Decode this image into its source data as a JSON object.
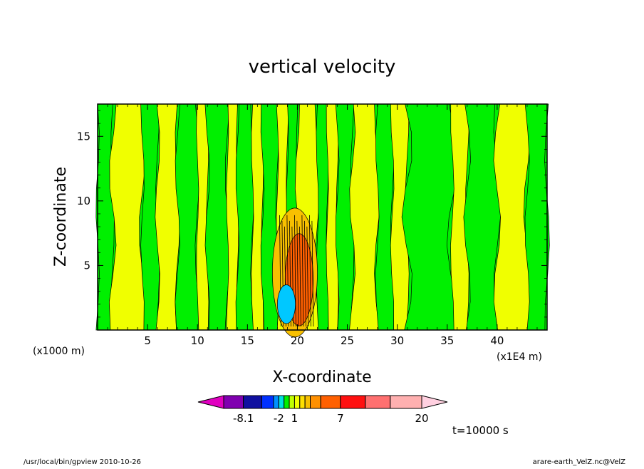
{
  "footer": {
    "left": "/usr/local/bin/gpview  2010-10-26",
    "right": "arare-earth_VelZ.nc@VelZ"
  },
  "colors": {
    "green": "#00f000",
    "yellow": "#f0ff00",
    "light_orange": "#f8c000",
    "orange": "#ff6000",
    "red": "#ff1010",
    "cyan": "#00c8ff",
    "blue": "#0030ff"
  },
  "chart_data": {
    "type": "heatmap",
    "title": "vertical velocity",
    "xlabel": "X-coordinate",
    "ylabel": "Z-coordinate",
    "x_scale_note": "(x1000 m)",
    "x_unit_note": "(x1E4 m)",
    "xlim": [
      0,
      45
    ],
    "ylim": [
      0,
      17.5
    ],
    "x_ticks": [
      "5",
      "10",
      "15",
      "20",
      "25",
      "30",
      "35",
      "40"
    ],
    "y_ticks": [
      "5",
      "10",
      "15"
    ],
    "time_label": "t=10000 s",
    "colorbar": {
      "tick_labels": [
        "-8.1",
        "-2",
        "1",
        "7",
        "20"
      ],
      "colors": [
        "#e000c0",
        "#8000b0",
        "#1010a0",
        "#0030ff",
        "#0090ff",
        "#00e0e0",
        "#00f000",
        "#c0ff00",
        "#f0ff00",
        "#ffe000",
        "#f8c000",
        "#ff9000",
        "#ff6000",
        "#ff1010",
        "#ff7070",
        "#ffb0b0",
        "#ffd0e0"
      ]
    },
    "columns": [
      {
        "x0": 0,
        "x1": 1.5,
        "c": "green"
      },
      {
        "x0": 1.5,
        "x1": 4.5,
        "c": "yellow"
      },
      {
        "x0": 4.5,
        "x1": 6,
        "c": "green"
      },
      {
        "x0": 6,
        "x1": 8,
        "c": "yellow"
      },
      {
        "x0": 8,
        "x1": 10,
        "c": "green"
      },
      {
        "x0": 10,
        "x1": 11,
        "c": "yellow"
      },
      {
        "x0": 11,
        "x1": 13,
        "c": "green"
      },
      {
        "x0": 13,
        "x1": 14,
        "c": "yellow"
      },
      {
        "x0": 14,
        "x1": 15.5,
        "c": "green"
      },
      {
        "x0": 15.5,
        "x1": 16.5,
        "c": "yellow"
      },
      {
        "x0": 16.5,
        "x1": 18,
        "c": "green"
      },
      {
        "x0": 18,
        "x1": 19,
        "c": "yellow"
      },
      {
        "x0": 19,
        "x1": 20,
        "c": "green"
      },
      {
        "x0": 20,
        "x1": 22,
        "c": "yellow"
      },
      {
        "x0": 22,
        "x1": 23,
        "c": "green"
      },
      {
        "x0": 23,
        "x1": 24,
        "c": "yellow"
      },
      {
        "x0": 24,
        "x1": 25.5,
        "c": "green"
      },
      {
        "x0": 25.5,
        "x1": 28,
        "c": "yellow"
      },
      {
        "x0": 28,
        "x1": 29.5,
        "c": "green"
      },
      {
        "x0": 29.5,
        "x1": 31,
        "c": "yellow"
      },
      {
        "x0": 31,
        "x1": 35.5,
        "c": "green"
      },
      {
        "x0": 35.5,
        "x1": 37,
        "c": "yellow"
      },
      {
        "x0": 37,
        "x1": 40,
        "c": "green"
      },
      {
        "x0": 40,
        "x1": 43,
        "c": "yellow"
      },
      {
        "x0": 43,
        "x1": 45,
        "c": "green"
      }
    ],
    "hot_region": {
      "x0": 17.5,
      "x1": 22,
      "y0": 0,
      "y1": 10
    },
    "cold_region": {
      "x0": 18,
      "x1": 19.8,
      "y0": 0.5,
      "y1": 3.5
    }
  }
}
